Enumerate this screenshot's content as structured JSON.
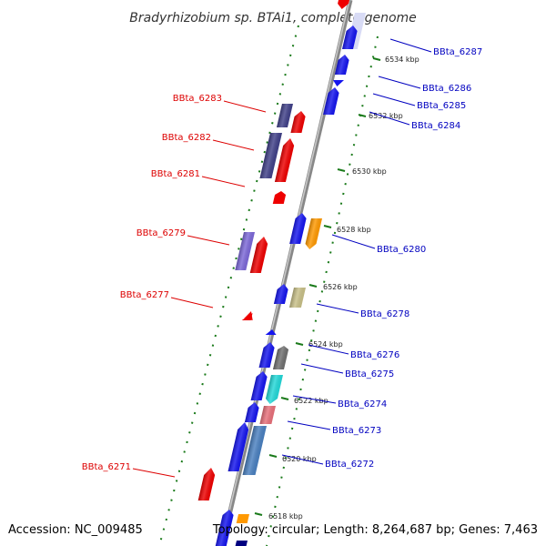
{
  "title": "Bradyrhizobium sp. BTAi1, complete genome",
  "footer": {
    "accession": "Accession: NC_009485",
    "topology": "Topology: circular; Length: 8,264,687 bp; Genes: 7,463"
  },
  "colors": {
    "backbone": "#8c8c8c",
    "ticks": "#1a7a1a",
    "left_label": "#dd0000",
    "right_label": "#0000c0"
  },
  "scale_labels": [
    "6534 kbp",
    "6532 kbp",
    "6530 kbp",
    "6528 kbp",
    "6526 kbp",
    "6524 kbp",
    "6522 kbp",
    "6520 kbp",
    "6518 kbp"
  ],
  "left_labels": [
    "BBta_6283",
    "BBta_6282",
    "BBta_6281",
    "BBta_6279",
    "BBta_6277",
    "BBta_6271"
  ],
  "right_labels": [
    "BBta_6287",
    "BBta_6286",
    "BBta_6285",
    "BBta_6284",
    "BBta_6280",
    "BBta_6278",
    "BBta_6276",
    "BBta_6275",
    "BBta_6274",
    "BBta_6273",
    "BBta_6272"
  ]
}
